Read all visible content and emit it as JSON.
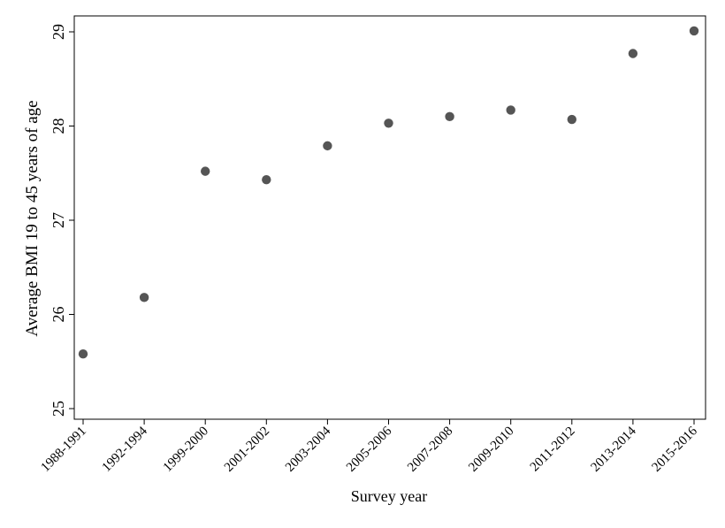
{
  "chart_data": {
    "type": "scatter",
    "title": "",
    "xlabel": "Survey year",
    "ylabel": "Average BMI 19 to 45 years of age",
    "categories": [
      "1988-1991",
      "1992-1994",
      "1999-2000",
      "2001-2002",
      "2003-2004",
      "2005-2006",
      "2007-2008",
      "2009-2010",
      "2011-2012",
      "2013-2014",
      "2015-2016"
    ],
    "series": [
      {
        "values": [
          25.58,
          26.18,
          27.52,
          27.43,
          27.79,
          28.03,
          28.1,
          28.17,
          28.07,
          28.77,
          29.01
        ]
      }
    ],
    "ylim": [
      25,
      29
    ],
    "yticks": [
      "25",
      "26",
      "27",
      "28",
      "29"
    ],
    "grid": false,
    "marker_color": "#555555"
  }
}
